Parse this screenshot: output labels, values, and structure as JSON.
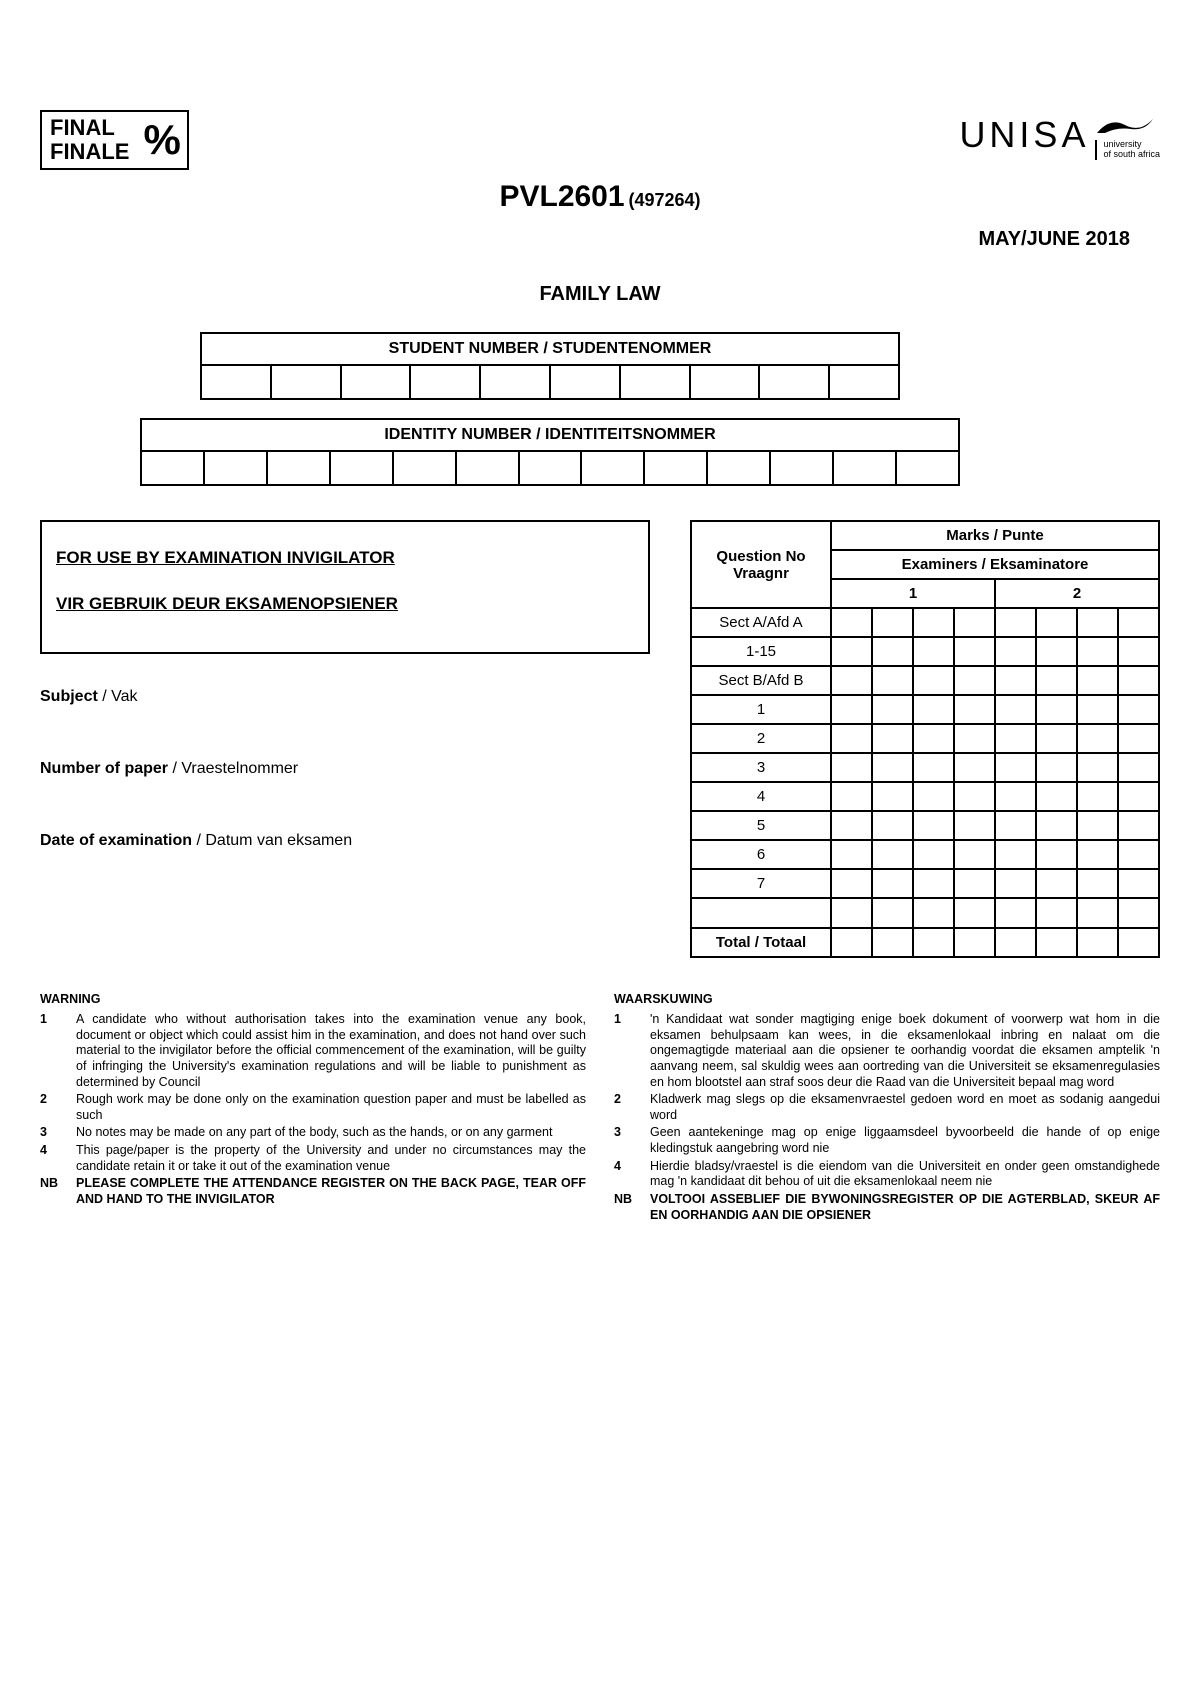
{
  "header": {
    "final_en": "FINAL",
    "final_af": "FINALE",
    "percent": "%",
    "logo_text": "UNISA",
    "logo_sub_line1": "university",
    "logo_sub_line2": "of south africa",
    "course_code": "PVL2601",
    "course_number": "(497264)",
    "session": "MAY/JUNE 2018",
    "course_title": "FAMILY LAW"
  },
  "idblocks": {
    "student_label": "STUDENT NUMBER / STUDENTENOMMER",
    "identity_label": "IDENTITY NUMBER / IDENTITEITSNOMMER",
    "student_cells": 10,
    "identity_cells": 13
  },
  "invigilator": {
    "line_en": "FOR USE BY EXAMINATION INVIGILATOR",
    "line_af": "VIR GEBRUIK DEUR EKSAMENOPSIENER"
  },
  "meta": {
    "subject_lbl": "Subject",
    "subject_af": " / Vak",
    "paper_lbl": "Number of paper",
    "paper_af": " / Vraestelnommer",
    "date_lbl": "Date of examination",
    "date_af": " / Datum van eksamen"
  },
  "marks": {
    "question_header": "Question No Vraagnr",
    "marks_header": "Marks / Punte",
    "examiners_header": "Examiners / Eksaminatore",
    "col1": "1",
    "col2": "2",
    "rows": [
      "Sect A/Afd A",
      "1-15",
      "Sect B/Afd B",
      "1",
      "2",
      "3",
      "4",
      "5",
      "6",
      "7",
      ""
    ],
    "total": "Total / Totaal"
  },
  "warnings_en": {
    "title": "WARNING",
    "items": [
      {
        "n": "1",
        "t": "A candidate who without authorisation takes into the examination venue any book, document or object which could assist him in the examination, and does not hand over such material to the invigilator before the official commencement of the examination, will be guilty of infringing the University's examination regulations and will be liable to punishment as determined by Council"
      },
      {
        "n": "2",
        "t": "Rough work may be done only on the examination question paper and must be labelled as such"
      },
      {
        "n": "3",
        "t": "No notes may be made on any part of the body, such as the hands, or on any garment"
      },
      {
        "n": "4",
        "t": "This page/paper is the property of the University and under no circumstances may the candidate retain it or take it out of the examination venue"
      },
      {
        "n": "NB",
        "t": "PLEASE COMPLETE THE ATTENDANCE REGISTER ON THE BACK PAGE, TEAR OFF AND HAND TO THE INVIGILATOR"
      }
    ]
  },
  "warnings_af": {
    "title": "WAARSKUWING",
    "items": [
      {
        "n": "1",
        "t": "'n Kandidaat wat sonder magtiging enige boek dokument of voorwerp wat hom in die eksamen behulpsaam kan wees, in die eksamenlokaal inbring en nalaat om die ongemagtigde materiaal aan die opsiener te oorhandig voordat die eksamen amptelik 'n aanvang neem, sal skuldig wees aan oortreding van die Universiteit se eksamenregulasies en hom blootstel aan straf soos deur die Raad van die Universiteit bepaal mag word"
      },
      {
        "n": "2",
        "t": "Kladwerk mag slegs op die eksamenvraestel gedoen word en moet as sodanig aangedui word"
      },
      {
        "n": "3",
        "t": "Geen aantekeninge mag op enige liggaamsdeel byvoorbeeld die hande of op enige kledingstuk aangebring word nie"
      },
      {
        "n": "4",
        "t": "Hierdie bladsy/vraestel is die eiendom van die Universiteit en onder geen omstandighede mag 'n kandidaat dit behou of uit die eksamenlokaal neem nie"
      },
      {
        "n": "NB",
        "t": "VOLTOOI ASSEBLIEF DIE BYWONINGSREGISTER OP DIE AGTERBLAD, SKEUR AF EN OORHANDIG AAN DIE OPSIENER"
      }
    ]
  }
}
